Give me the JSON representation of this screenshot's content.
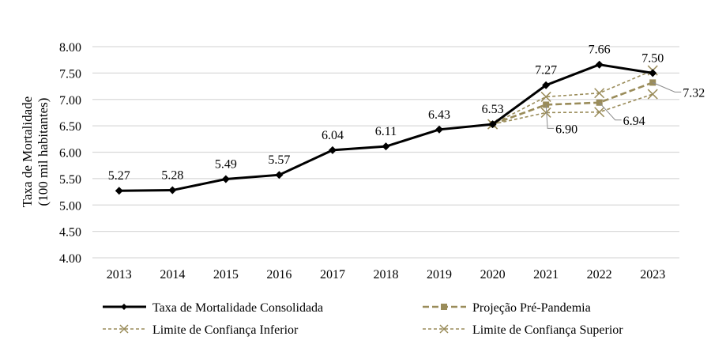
{
  "chart_data": {
    "type": "line",
    "title": "",
    "xlabel": "",
    "ylabel": [
      "Taxa de Mortalidade",
      "(100 mil habitantes)"
    ],
    "ylim": [
      4.0,
      8.0
    ],
    "yticks": [
      "4.00",
      "4.50",
      "5.00",
      "5.50",
      "6.00",
      "6.50",
      "7.00",
      "7.50",
      "8.00"
    ],
    "grid": true,
    "legend_position": "bottom",
    "categories": [
      "2013",
      "2014",
      "2015",
      "2016",
      "2017",
      "2018",
      "2019",
      "2020",
      "2021",
      "2022",
      "2023"
    ],
    "series": [
      {
        "name": "Taxa de Mortalidade Consolidada",
        "color": "#000000",
        "marker": "diamond",
        "dash": "solid",
        "values": [
          5.27,
          5.28,
          5.49,
          5.57,
          6.04,
          6.11,
          6.43,
          6.53,
          7.27,
          7.66,
          7.5
        ],
        "labels": [
          "5.27",
          "5.28",
          "5.49",
          "5.57",
          "6.04",
          "6.11",
          "6.43",
          "6.53",
          "7.27",
          "7.66",
          "7.50"
        ]
      },
      {
        "name": "Projeção Pré-Pandemia",
        "color": "#9a8c5a",
        "marker": "square",
        "dash": "dashed",
        "values": [
          null,
          null,
          null,
          null,
          null,
          null,
          null,
          6.53,
          6.9,
          6.94,
          7.32
        ],
        "labels": [
          null,
          null,
          null,
          null,
          null,
          null,
          null,
          null,
          "6.90",
          "6.94",
          "7.32"
        ]
      },
      {
        "name": "Limite de Confiança Inferior",
        "color": "#9a8c5a",
        "marker": "x",
        "dash": "dotted",
        "values": [
          null,
          null,
          null,
          null,
          null,
          null,
          null,
          6.53,
          6.75,
          6.76,
          7.1
        ]
      },
      {
        "name": "Limite de Confiança Superior",
        "color": "#9a8c5a",
        "marker": "x",
        "dash": "dotted",
        "values": [
          null,
          null,
          null,
          null,
          null,
          null,
          null,
          6.53,
          7.05,
          7.12,
          7.55
        ]
      }
    ]
  }
}
